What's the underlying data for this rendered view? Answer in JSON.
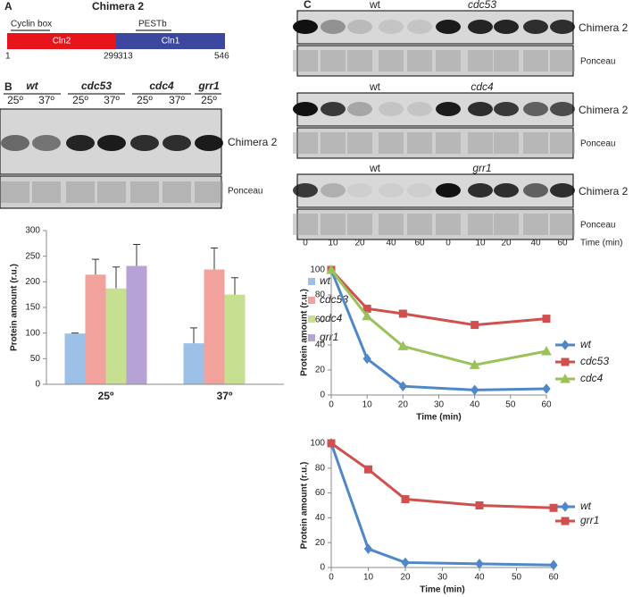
{
  "panel_labels": [
    "A",
    "B",
    "C"
  ],
  "panel_a": {
    "title": "Chimera 2",
    "motifs": [
      "Cyclin box",
      "PESTb"
    ],
    "segments": [
      "Cln2",
      "Cln1"
    ],
    "positions": [
      1,
      299,
      313,
      546
    ]
  },
  "panel_b_blot": {
    "strains": [
      "wt",
      "cdc53",
      "cdc4",
      "grr1"
    ],
    "temperatures": [
      "25º",
      "37º",
      "25º",
      "37º",
      "25º",
      "37º",
      "25º"
    ],
    "rows": [
      "Chimera 2",
      "Ponceau"
    ]
  },
  "panel_c_blots": [
    {
      "groups": [
        "wt",
        "cdc53"
      ],
      "rows": [
        "Chimera 2",
        "Ponceau"
      ]
    },
    {
      "groups": [
        "wt",
        "cdc4"
      ],
      "rows": [
        "Chimera 2",
        "Ponceau"
      ]
    },
    {
      "groups": [
        "wt",
        "grr1"
      ],
      "rows": [
        "Chimera 2",
        "Ponceau"
      ]
    }
  ],
  "panel_c_times": {
    "values": [
      0,
      10,
      20,
      40,
      60,
      0,
      10,
      20,
      40,
      60
    ],
    "label": "Time (min)"
  },
  "chart_data": [
    {
      "type": "bar",
      "y_label": "Protein amount (r.u.)",
      "categories": [
        "25º",
        "37º"
      ],
      "series": [
        {
          "name": "wt",
          "color": "#9cc0e6",
          "values": [
            99,
            80
          ],
          "errors": [
            1,
            30
          ]
        },
        {
          "name": "cdc53",
          "color": "#f2a29d",
          "values": [
            214,
            224
          ],
          "errors": [
            30,
            42
          ]
        },
        {
          "name": "cdc4",
          "color": "#c6df91",
          "values": [
            187,
            175
          ],
          "errors": [
            42,
            33
          ]
        },
        {
          "name": "grr1",
          "color": "#b7a2d6",
          "values": [
            231,
            null
          ],
          "errors": [
            42,
            null
          ]
        }
      ],
      "ylim": [
        0,
        300
      ],
      "yticks": [
        0,
        50,
        100,
        150,
        200,
        250,
        300
      ]
    },
    {
      "type": "line",
      "x_label": "Time (min)",
      "y_label": "Protein amount (r.u.)",
      "x": [
        0,
        10,
        20,
        40,
        60
      ],
      "series": [
        {
          "name": "wt",
          "color": "#4f87c7",
          "marker": "diamond",
          "values": [
            100,
            29,
            7,
            4,
            5
          ]
        },
        {
          "name": "cdc53",
          "color": "#cf504c",
          "marker": "square",
          "values": [
            100,
            69,
            65,
            56,
            61
          ]
        },
        {
          "name": "cdc4",
          "color": "#9bc15a",
          "marker": "triangle",
          "values": [
            100,
            63,
            39,
            24,
            35
          ]
        }
      ],
      "xlim": [
        0,
        60
      ],
      "xticks": [
        0,
        10,
        20,
        30,
        40,
        50,
        60
      ],
      "ylim": [
        0,
        100
      ],
      "yticks": [
        0,
        20,
        40,
        60,
        80,
        100
      ]
    },
    {
      "type": "line",
      "x_label": "Time (min)",
      "y_label": "Protein amount (r.u.)",
      "x": [
        0,
        10,
        20,
        40,
        60
      ],
      "series": [
        {
          "name": "wt",
          "color": "#4f87c7",
          "marker": "diamond",
          "values": [
            100,
            15,
            4,
            3,
            2
          ]
        },
        {
          "name": "grr1",
          "color": "#cf504c",
          "marker": "square",
          "values": [
            100,
            79,
            55,
            50,
            48
          ]
        }
      ],
      "xlim": [
        0,
        60
      ],
      "xticks": [
        0,
        10,
        20,
        30,
        40,
        50,
        60
      ],
      "ylim": [
        0,
        100
      ],
      "yticks": [
        0,
        20,
        40,
        60,
        80,
        100
      ]
    }
  ]
}
